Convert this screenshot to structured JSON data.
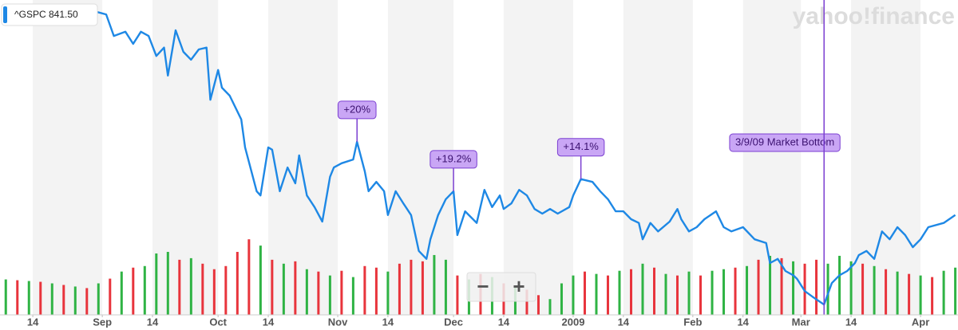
{
  "chart_data": {
    "type": "line",
    "watermark": "yahoo!finance",
    "xlim": [
      5.5,
      253.7
    ],
    "xticks": [
      14,
      {
        "value": 32,
        "label": "Sep"
      },
      {
        "value": 45,
        "label": "14"
      },
      {
        "value": 62,
        "label": "Oct"
      },
      {
        "value": 75,
        "label": "14"
      },
      {
        "value": 93,
        "label": "Nov"
      },
      {
        "value": 106,
        "label": "14"
      },
      {
        "value": 123,
        "label": "Dec"
      },
      {
        "value": 136,
        "label": "14"
      },
      {
        "value": 154,
        "label": "2009"
      },
      {
        "value": 167,
        "label": "14"
      },
      {
        "value": 185,
        "label": "Feb"
      },
      {
        "value": 198,
        "label": "14"
      },
      {
        "value": 213,
        "label": "Mar"
      },
      {
        "value": 226,
        "label": "14"
      },
      {
        "value": 244,
        "label": "Apr"
      }
    ],
    "ylim": [
      640,
      1315
    ],
    "y2lim": [
      0,
      40
    ],
    "series": [
      {
        "name": "^GSPC 841.50",
        "color": "#1e88e5",
        "x": [
          7,
          18,
          28,
          33,
          35,
          38,
          40,
          42,
          44,
          46,
          48,
          49,
          51,
          53,
          55,
          57,
          59,
          60,
          62,
          63,
          65,
          68,
          69,
          72,
          73,
          75,
          76,
          78,
          80,
          82,
          83,
          85,
          87,
          89,
          91,
          92,
          94,
          97,
          98,
          100,
          101,
          103,
          105,
          106,
          108,
          110,
          112,
          114,
          116,
          117,
          119,
          121,
          123,
          124,
          126,
          129,
          131,
          133,
          135,
          136,
          138,
          140,
          142,
          144,
          146,
          148,
          150,
          153,
          154,
          156,
          159,
          161,
          163,
          165,
          167,
          169,
          171,
          172,
          174,
          176,
          179,
          181,
          182,
          184,
          186,
          188,
          191,
          193,
          195,
          198,
          201,
          204,
          205,
          207,
          209,
          211,
          212,
          214,
          216,
          219,
          221,
          223,
          225,
          227,
          228,
          230,
          232,
          234,
          236,
          238,
          240,
          242,
          244,
          246,
          250,
          253
        ],
        "values": [
          1289,
          1298,
          1295,
          1284,
          1238,
          1247,
          1221,
          1247,
          1238,
          1195,
          1213,
          1153,
          1250,
          1204,
          1187,
          1209,
          1213,
          1101,
          1165,
          1127,
          1110,
          1059,
          999,
          905,
          896,
          999,
          994,
          905,
          956,
          922,
          982,
          896,
          871,
          840,
          936,
          956,
          965,
          973,
          1011,
          948,
          905,
          925,
          905,
          854,
          905,
          879,
          854,
          777,
          760,
          802,
          854,
          888,
          905,
          811,
          862,
          837,
          908,
          871,
          896,
          867,
          879,
          908,
          896,
          867,
          857,
          867,
          857,
          871,
          896,
          931,
          925,
          905,
          888,
          862,
          862,
          845,
          837,
          802,
          837,
          819,
          840,
          867,
          845,
          819,
          828,
          845,
          862,
          828,
          819,
          828,
          802,
          794,
          751,
          760,
          734,
          725,
          717,
          691,
          679,
          662,
          708,
          725,
          734,
          751,
          768,
          777,
          760,
          819,
          802,
          828,
          811,
          785,
          802,
          828,
          837,
          854
        ]
      },
      {
        "color": "#2fb344",
        "axis": "y2",
        "x": [
          7,
          13,
          19,
          25,
          31,
          37,
          43,
          46,
          49,
          55,
          73,
          79,
          85,
          91,
          97,
          106,
          118,
          121,
          127,
          133,
          139,
          148,
          151,
          154,
          160,
          166,
          172,
          178,
          184,
          190,
          193,
          199,
          205,
          211,
          220,
          223,
          226,
          232,
          238,
          244,
          250,
          253
        ],
        "values": [
          4.5,
          4.3,
          4.0,
          3.6,
          4.0,
          5.5,
          6.2,
          7.8,
          8.0,
          7.2,
          8.8,
          6.5,
          5.8,
          5.0,
          4.8,
          5.5,
          7.6,
          7.0,
          4.5,
          4.8,
          3.6,
          2.0,
          4.0,
          5.0,
          5.2,
          5.6,
          6.5,
          5.2,
          5.5,
          5.6,
          5.8,
          6.2,
          7.5,
          6.8,
          6.5,
          7.5,
          6.8,
          6.2,
          5.5,
          5.0,
          5.6,
          6.0
        ]
      },
      {
        "color": "#e8343c",
        "axis": "y2",
        "x": [
          10,
          16,
          22,
          28,
          34,
          40,
          52,
          58,
          61,
          64,
          67,
          70,
          76,
          82,
          88,
          94,
          100,
          103,
          109,
          112,
          115,
          124,
          130,
          136,
          142,
          145,
          157,
          163,
          169,
          175,
          181,
          187,
          196,
          202,
          208,
          214,
          217,
          229,
          235,
          241,
          247
        ],
        "values": [
          4.4,
          4.2,
          3.8,
          3.4,
          4.6,
          6.0,
          7.0,
          6.5,
          5.8,
          6.2,
          8.0,
          9.6,
          7.0,
          6.8,
          5.5,
          5.6,
          6.2,
          6.0,
          6.5,
          7.0,
          6.8,
          5.0,
          5.2,
          4.0,
          3.2,
          2.5,
          5.5,
          5.0,
          5.8,
          6.0,
          5.0,
          5.0,
          6.0,
          7.0,
          7.2,
          6.5,
          7.0,
          6.5,
          5.8,
          5.2,
          4.8
        ]
      }
    ],
    "annotations": [
      {
        "text": "+20%",
        "x": 98
      },
      {
        "text": "+19.2%",
        "x": 123
      },
      {
        "text": "+14.1%",
        "x": 156
      },
      {
        "text": "3/9/09 Market Bottom",
        "x": 219,
        "style": "vline"
      }
    ]
  },
  "controls": [
    "−",
    "+"
  ]
}
